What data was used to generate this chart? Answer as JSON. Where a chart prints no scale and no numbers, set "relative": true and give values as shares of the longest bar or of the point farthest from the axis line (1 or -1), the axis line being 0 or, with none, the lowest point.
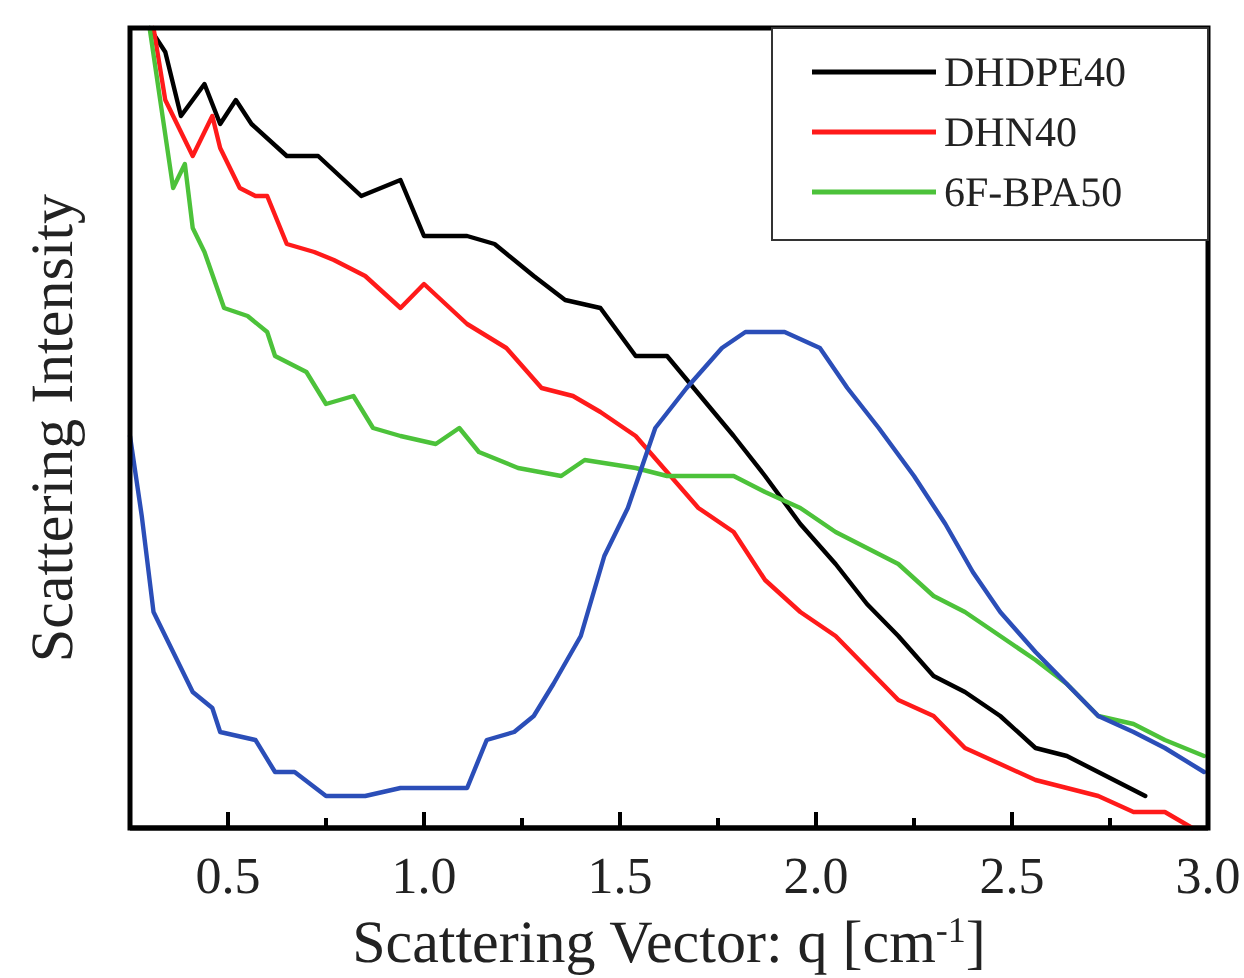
{
  "chart_data": {
    "type": "line",
    "relative": true,
    "xlabel": "Scattering Vector: q [cm$^{-1}$]",
    "ylabel": "Scattering Intensity",
    "xlim": [
      0.25,
      3.0
    ],
    "xticks": [
      0.5,
      {
        "value": 0.75,
        "label": null
      },
      "1.0",
      {
        "value": 1.25,
        "label": null
      },
      1.5,
      {
        "value": 1.75,
        "label": null
      },
      "2.0",
      {
        "value": 2.25,
        "label": null
      },
      2.5,
      {
        "value": 2.75,
        "label": null
      },
      "3.0"
    ],
    "legend": "top right",
    "grid": false,
    "line_style": "solid",
    "marker": "none",
    "series": [
      {
        "name": "DHDPE40",
        "color": "#000000",
        "x": [
          0.3,
          0.34,
          0.38,
          0.44,
          0.48,
          0.52,
          0.56,
          0.65,
          0.73,
          0.84,
          0.94,
          1.0,
          1.11,
          1.18,
          1.28,
          1.36,
          1.45,
          1.54,
          1.62,
          1.79,
          1.87,
          1.96,
          2.05,
          2.13,
          2.21,
          2.3,
          2.38,
          2.47,
          2.56,
          2.64,
          2.72,
          2.84
        ],
        "values": [
          1.0,
          0.97,
          0.89,
          0.93,
          0.88,
          0.91,
          0.88,
          0.84,
          0.84,
          0.79,
          0.81,
          0.74,
          0.74,
          0.73,
          0.69,
          0.66,
          0.65,
          0.59,
          0.59,
          0.49,
          0.44,
          0.38,
          0.33,
          0.28,
          0.24,
          0.19,
          0.17,
          0.14,
          0.1,
          0.09,
          0.07,
          0.04
        ]
      },
      {
        "name": "DHN40",
        "color": "#ff1a1a",
        "x": [
          0.31,
          0.34,
          0.41,
          0.46,
          0.48,
          0.53,
          0.57,
          0.6,
          0.65,
          0.72,
          0.77,
          0.85,
          0.94,
          1.0,
          1.11,
          1.21,
          1.3,
          1.38,
          1.45,
          1.54,
          1.7,
          1.79,
          1.87,
          1.96,
          2.05,
          2.13,
          2.21,
          2.3,
          2.38,
          2.47,
          2.56,
          2.64,
          2.72,
          2.81,
          2.89,
          2.96
        ],
        "values": [
          1.0,
          0.91,
          0.84,
          0.89,
          0.85,
          0.8,
          0.79,
          0.79,
          0.73,
          0.72,
          0.71,
          0.69,
          0.65,
          0.68,
          0.63,
          0.6,
          0.55,
          0.54,
          0.52,
          0.49,
          0.4,
          0.37,
          0.31,
          0.27,
          0.24,
          0.2,
          0.16,
          0.14,
          0.1,
          0.08,
          0.06,
          0.05,
          0.04,
          0.02,
          0.02,
          0.0
        ]
      },
      {
        "name": "6F-BPA50",
        "color": "#4cc23a",
        "x": [
          0.3,
          0.33,
          0.36,
          0.39,
          0.41,
          0.44,
          0.49,
          0.55,
          0.6,
          0.62,
          0.7,
          0.75,
          0.82,
          0.87,
          0.94,
          1.03,
          1.09,
          1.14,
          1.24,
          1.35,
          1.41,
          1.54,
          1.62,
          1.79,
          1.87,
          1.96,
          2.05,
          2.13,
          2.21,
          2.3,
          2.38,
          2.47,
          2.56,
          2.64,
          2.72,
          2.81,
          2.89,
          2.99
        ],
        "values": [
          1.0,
          0.9,
          0.8,
          0.83,
          0.75,
          0.72,
          0.65,
          0.64,
          0.62,
          0.59,
          0.57,
          0.53,
          0.54,
          0.5,
          0.49,
          0.48,
          0.5,
          0.47,
          0.45,
          0.44,
          0.46,
          0.45,
          0.44,
          0.44,
          0.42,
          0.4,
          0.37,
          0.35,
          0.33,
          0.29,
          0.27,
          0.24,
          0.21,
          0.18,
          0.14,
          0.13,
          0.11,
          0.09
        ]
      },
      {
        "color": "#2b4eb8",
        "x": [
          0.25,
          0.28,
          0.31,
          0.36,
          0.41,
          0.46,
          0.48,
          0.57,
          0.62,
          0.67,
          0.75,
          0.85,
          0.94,
          1.03,
          1.11,
          1.16,
          1.23,
          1.28,
          1.33,
          1.4,
          1.46,
          1.52,
          1.59,
          1.67,
          1.76,
          1.82,
          1.92,
          2.01,
          2.08,
          2.16,
          2.25,
          2.33,
          2.4,
          2.47,
          2.56,
          2.64,
          2.72,
          2.81,
          2.89,
          2.99
        ],
        "values": [
          0.49,
          0.39,
          0.27,
          0.22,
          0.17,
          0.15,
          0.12,
          0.11,
          0.07,
          0.07,
          0.04,
          0.04,
          0.05,
          0.05,
          0.05,
          0.11,
          0.12,
          0.14,
          0.18,
          0.24,
          0.34,
          0.4,
          0.5,
          0.55,
          0.6,
          0.62,
          0.62,
          0.6,
          0.55,
          0.5,
          0.44,
          0.38,
          0.32,
          0.27,
          0.22,
          0.18,
          0.14,
          0.12,
          0.1,
          0.07
        ]
      }
    ]
  }
}
